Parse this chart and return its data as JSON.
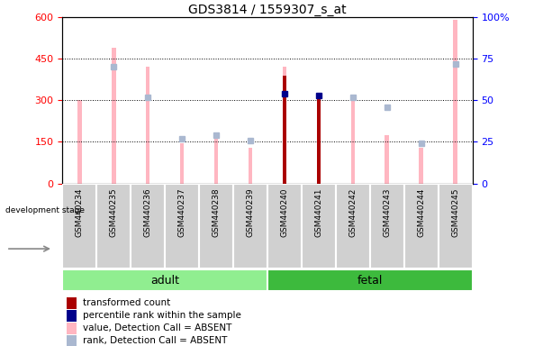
{
  "title": "GDS3814 / 1559307_s_at",
  "samples": [
    "GSM440234",
    "GSM440235",
    "GSM440236",
    "GSM440237",
    "GSM440238",
    "GSM440239",
    "GSM440240",
    "GSM440241",
    "GSM440242",
    "GSM440243",
    "GSM440244",
    "GSM440245"
  ],
  "value_absent": [
    300,
    490,
    420,
    145,
    160,
    130,
    420,
    310,
    300,
    175,
    130,
    590
  ],
  "rank_absent_pct": [
    null,
    70,
    52,
    27,
    29,
    26,
    null,
    null,
    52,
    46,
    24,
    72
  ],
  "transformed_count": [
    null,
    null,
    null,
    null,
    null,
    null,
    390,
    320,
    null,
    null,
    null,
    null
  ],
  "percentile_rank_pct": [
    null,
    null,
    null,
    null,
    null,
    null,
    54,
    53,
    null,
    null,
    null,
    null
  ],
  "groups": [
    {
      "label": "adult",
      "start": 0,
      "end": 5,
      "color": "#90ee90"
    },
    {
      "label": "fetal",
      "start": 6,
      "end": 11,
      "color": "#3dba3d"
    }
  ],
  "ylim_left": [
    0,
    600
  ],
  "ylim_right": [
    0,
    100
  ],
  "yticks_left": [
    0,
    150,
    300,
    450,
    600
  ],
  "yticks_right": [
    0,
    25,
    50,
    75,
    100
  ],
  "color_value_absent": "#ffb6c1",
  "color_rank_absent": "#aab8d0",
  "color_transformed": "#aa0000",
  "color_percentile": "#00008b",
  "background_color": "#ffffff",
  "cell_bg_color": "#d0d0d0",
  "cell_border_color": "#ffffff"
}
